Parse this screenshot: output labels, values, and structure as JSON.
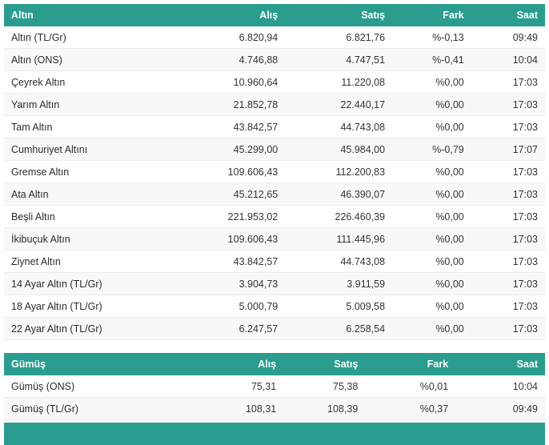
{
  "theme": {
    "accent": "#2a9d8f",
    "row_alt_bg": "#f8f8f8",
    "row_border": "#ececec",
    "text": "#333333",
    "header_text": "#ffffff"
  },
  "tables": [
    {
      "title": "Altın",
      "columns": [
        "Alış",
        "Satış",
        "Fark",
        "Saat"
      ],
      "rows": [
        {
          "name": "Altın (TL/Gr)",
          "alis": "6.820,94",
          "satis": "6.821,76",
          "fark": "%-0,13",
          "saat": "09:49"
        },
        {
          "name": "Altın (ONS)",
          "alis": "4.746,88",
          "satis": "4.747,51",
          "fark": "%-0,41",
          "saat": "10:04"
        },
        {
          "name": "Çeyrek Altın",
          "alis": "10.960,64",
          "satis": "11.220,08",
          "fark": "%0,00",
          "saat": "17:03"
        },
        {
          "name": "Yarım Altın",
          "alis": "21.852,78",
          "satis": "22.440,17",
          "fark": "%0,00",
          "saat": "17:03"
        },
        {
          "name": "Tam Altın",
          "alis": "43.842,57",
          "satis": "44.743,08",
          "fark": "%0,00",
          "saat": "17:03"
        },
        {
          "name": "Cumhuriyet Altını",
          "alis": "45.299,00",
          "satis": "45.984,00",
          "fark": "%-0,79",
          "saat": "17:07"
        },
        {
          "name": "Gremse Altın",
          "alis": "109.606,43",
          "satis": "112.200,83",
          "fark": "%0,00",
          "saat": "17:03"
        },
        {
          "name": "Ata Altın",
          "alis": "45.212,65",
          "satis": "46.390,07",
          "fark": "%0,00",
          "saat": "17:03"
        },
        {
          "name": "Beşli Altın",
          "alis": "221.953,02",
          "satis": "226.460,39",
          "fark": "%0,00",
          "saat": "17:03"
        },
        {
          "name": "İkibuçuk Altın",
          "alis": "109.606,43",
          "satis": "111.445,96",
          "fark": "%0,00",
          "saat": "17:03"
        },
        {
          "name": "Ziynet Altın",
          "alis": "43.842,57",
          "satis": "44.743,08",
          "fark": "%0,00",
          "saat": "17:03"
        },
        {
          "name": "14 Ayar Altın (TL/Gr)",
          "alis": "3.904,73",
          "satis": "3.911,59",
          "fark": "%0,00",
          "saat": "17:03"
        },
        {
          "name": "18 Ayar Altın (TL/Gr)",
          "alis": "5.000,79",
          "satis": "5.009,58",
          "fark": "%0,00",
          "saat": "17:03"
        },
        {
          "name": "22 Ayar Altın (TL/Gr)",
          "alis": "6.247,57",
          "satis": "6.258,54",
          "fark": "%0,00",
          "saat": "17:03"
        }
      ]
    },
    {
      "title": "Gümüş",
      "columns": [
        "Alış",
        "Satış",
        "Fark",
        "Saat"
      ],
      "rows": [
        {
          "name": "Gümüş (ONS)",
          "alis": "75,31",
          "satis": "75,38",
          "fark": "%0,01",
          "saat": "10:04"
        },
        {
          "name": "Gümüş (TL/Gr)",
          "alis": "108,31",
          "satis": "108,39",
          "fark": "%0,37",
          "saat": "09:49"
        }
      ]
    }
  ]
}
